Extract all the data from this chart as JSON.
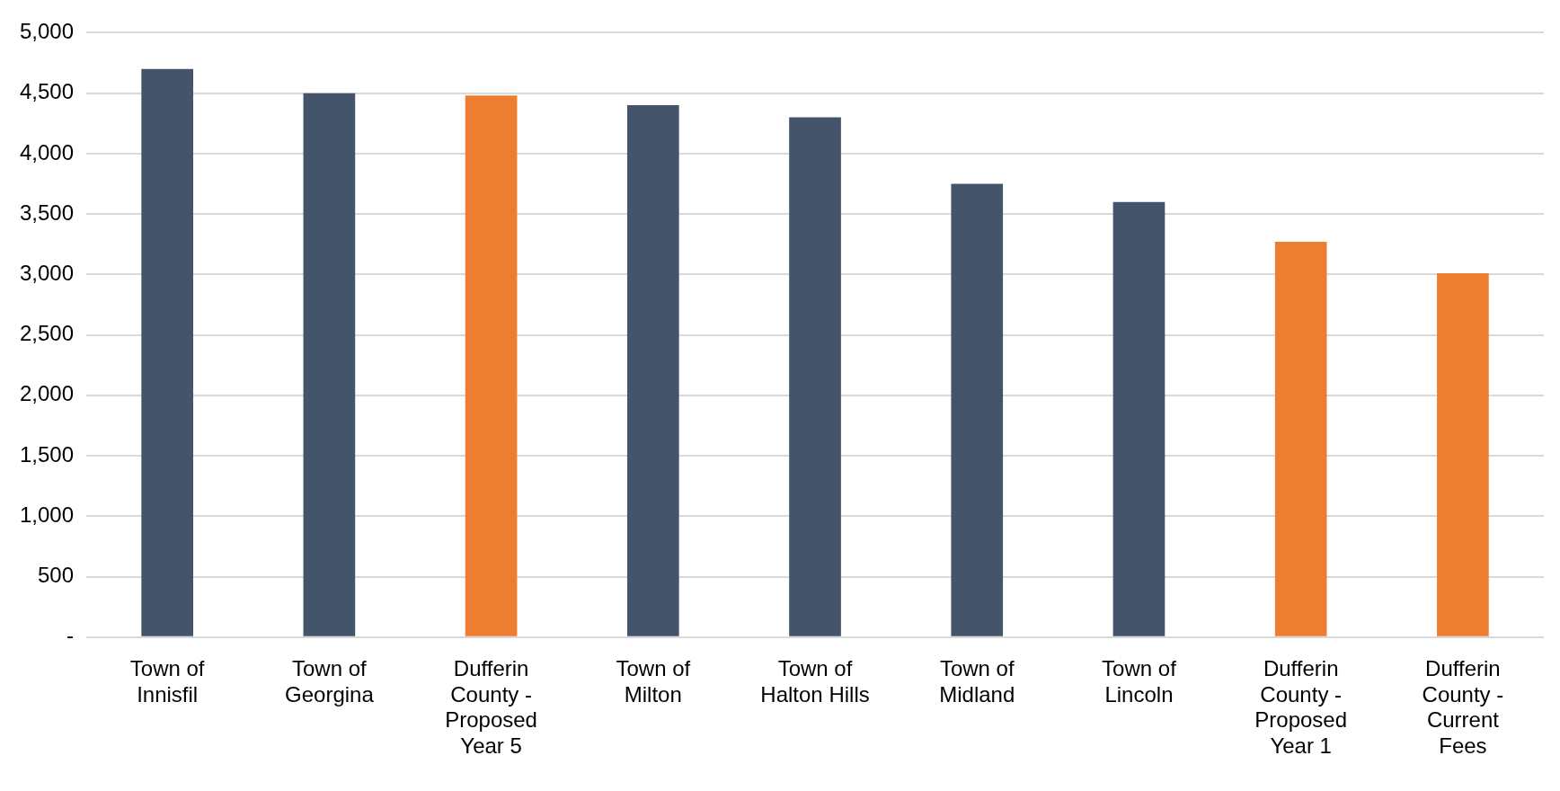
{
  "chart_data": {
    "type": "bar",
    "categories": [
      "Town of\nInnisfil",
      "Town of\nGeorgina",
      "Dufferin\nCounty -\nProposed\nYear 5",
      "Town of\nMilton",
      "Town of\nHalton Hills",
      "Town of\nMidland",
      "Town of\nLincoln",
      "Dufferin\nCounty -\nProposed\nYear 1",
      "Dufferin\nCounty -\nCurrent\nFees"
    ],
    "values": [
      4700,
      4500,
      4480,
      4400,
      4300,
      3750,
      3600,
      3270,
      3010
    ],
    "colors": [
      "#44546a",
      "#44546a",
      "#ed7d31",
      "#44546a",
      "#44546a",
      "#44546a",
      "#44546a",
      "#ed7d31",
      "#ed7d31"
    ],
    "ylim": [
      0,
      5000
    ],
    "yticks": [
      {
        "value": 0,
        "label": "-"
      },
      {
        "value": 500,
        "label": "500"
      },
      {
        "value": 1000,
        "label": "1,000"
      },
      {
        "value": 1500,
        "label": "1,500"
      },
      {
        "value": 2000,
        "label": "2,000"
      },
      {
        "value": 2500,
        "label": "2,500"
      },
      {
        "value": 3000,
        "label": "3,000"
      },
      {
        "value": 3500,
        "label": "3,500"
      },
      {
        "value": 4000,
        "label": "4,000"
      },
      {
        "value": 4500,
        "label": "4,500"
      },
      {
        "value": 5000,
        "label": "5,000"
      }
    ],
    "grid": "y",
    "legend": false
  }
}
